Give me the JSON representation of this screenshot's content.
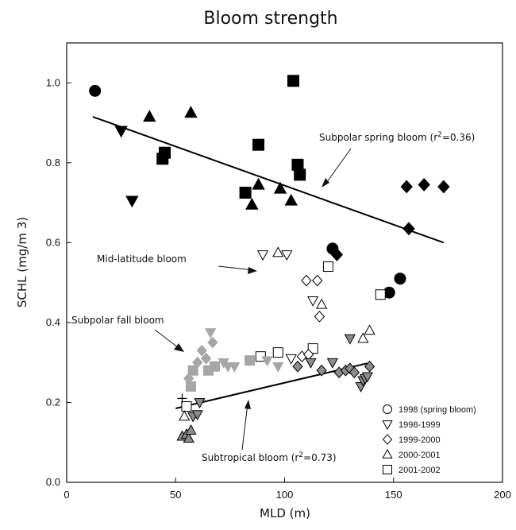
{
  "chart_data": {
    "type": "scatter",
    "title": "Bloom strength",
    "xlabel": "MLD (m)",
    "ylabel": "SCHL (mg/m 3)",
    "xlim": [
      0,
      200
    ],
    "ylim": [
      0,
      1.1
    ],
    "xticks": [
      "0",
      "50",
      "100",
      "150",
      "200"
    ],
    "yticks": [
      "0.0",
      "0.2",
      "0.4",
      "0.6",
      "0.8",
      "1.0"
    ],
    "legend_position": "bottom-right",
    "legend": [
      {
        "symbol": "circle",
        "label": "1998 (spring bloom)"
      },
      {
        "symbol": "triangle-down",
        "label": "1998-1999"
      },
      {
        "symbol": "diamond",
        "label": "1999-2000"
      },
      {
        "symbol": "triangle-up",
        "label": "2000-2001"
      },
      {
        "symbol": "square",
        "label": "2001-2002"
      }
    ],
    "colors": {
      "spring": "#000000",
      "midlat": "#ffffff",
      "fall": "#a6a6a6",
      "subtropical": "#8c8c8c",
      "edge": "#000000"
    },
    "annotations": [
      {
        "text": "Subpolar spring bloom (r",
        "sup": "2",
        "tail": "=0.36)"
      },
      {
        "text": "Mid-latitude bloom"
      },
      {
        "text": "Subpolar fall bloom"
      },
      {
        "text": "Subtropical bloom (r",
        "sup": "2",
        "tail": "=0.73)"
      }
    ],
    "regression_lines": [
      {
        "x": [
          12,
          173
        ],
        "y": [
          0.915,
          0.6
        ]
      },
      {
        "x": [
          50,
          138
        ],
        "y": [
          0.185,
          0.298
        ]
      }
    ],
    "series": [
      {
        "group": "spring",
        "points": [
          {
            "x": 13,
            "y": 0.98,
            "s": "circle"
          },
          {
            "x": 25,
            "y": 0.88,
            "s": "triangle-down"
          },
          {
            "x": 30,
            "y": 0.705,
            "s": "triangle-down"
          },
          {
            "x": 38,
            "y": 0.915,
            "s": "triangle-up"
          },
          {
            "x": 44,
            "y": 0.81,
            "s": "square"
          },
          {
            "x": 45,
            "y": 0.825,
            "s": "square"
          },
          {
            "x": 57,
            "y": 0.925,
            "s": "triangle-up"
          },
          {
            "x": 82,
            "y": 0.725,
            "s": "square"
          },
          {
            "x": 85,
            "y": 0.695,
            "s": "triangle-up"
          },
          {
            "x": 88,
            "y": 0.745,
            "s": "triangle-up"
          },
          {
            "x": 88,
            "y": 0.845,
            "s": "square"
          },
          {
            "x": 98,
            "y": 0.735,
            "s": "triangle-up"
          },
          {
            "x": 103,
            "y": 0.705,
            "s": "triangle-up"
          },
          {
            "x": 104,
            "y": 1.005,
            "s": "square"
          },
          {
            "x": 106,
            "y": 0.795,
            "s": "square"
          },
          {
            "x": 107,
            "y": 0.77,
            "s": "square"
          },
          {
            "x": 122,
            "y": 0.585,
            "s": "circle"
          },
          {
            "x": 124,
            "y": 0.57,
            "s": "diamond"
          },
          {
            "x": 153,
            "y": 0.51,
            "s": "circle"
          },
          {
            "x": 148,
            "y": 0.475,
            "s": "circle"
          },
          {
            "x": 156,
            "y": 0.74,
            "s": "diamond"
          },
          {
            "x": 164,
            "y": 0.745,
            "s": "diamond"
          },
          {
            "x": 173,
            "y": 0.74,
            "s": "diamond"
          },
          {
            "x": 157,
            "y": 0.635,
            "s": "diamond"
          }
        ]
      },
      {
        "group": "midlat",
        "points": [
          {
            "x": 90,
            "y": 0.57,
            "s": "triangle-down"
          },
          {
            "x": 97,
            "y": 0.575,
            "s": "triangle-up"
          },
          {
            "x": 101,
            "y": 0.57,
            "s": "triangle-down"
          },
          {
            "x": 110,
            "y": 0.505,
            "s": "diamond"
          },
          {
            "x": 115,
            "y": 0.505,
            "s": "diamond"
          },
          {
            "x": 120,
            "y": 0.54,
            "s": "square"
          },
          {
            "x": 113,
            "y": 0.455,
            "s": "triangle-down"
          },
          {
            "x": 117,
            "y": 0.445,
            "s": "triangle-up"
          },
          {
            "x": 116,
            "y": 0.415,
            "s": "diamond"
          },
          {
            "x": 144,
            "y": 0.47,
            "s": "square"
          },
          {
            "x": 139,
            "y": 0.38,
            "s": "triangle-up"
          },
          {
            "x": 136,
            "y": 0.36,
            "s": "triangle-up"
          },
          {
            "x": 89,
            "y": 0.315,
            "s": "square"
          },
          {
            "x": 97,
            "y": 0.325,
            "s": "square"
          },
          {
            "x": 103,
            "y": 0.31,
            "s": "triangle-down"
          },
          {
            "x": 108,
            "y": 0.315,
            "s": "diamond"
          },
          {
            "x": 113,
            "y": 0.335,
            "s": "square"
          },
          {
            "x": 111,
            "y": 0.32,
            "s": "diamond"
          },
          {
            "x": 55,
            "y": 0.19,
            "s": "square"
          },
          {
            "x": 54,
            "y": 0.165,
            "s": "triangle-up"
          }
        ]
      },
      {
        "group": "fall",
        "points": [
          {
            "x": 56,
            "y": 0.26,
            "s": "diamond"
          },
          {
            "x": 57,
            "y": 0.24,
            "s": "square"
          },
          {
            "x": 60,
            "y": 0.3,
            "s": "diamond"
          },
          {
            "x": 62,
            "y": 0.33,
            "s": "diamond"
          },
          {
            "x": 64,
            "y": 0.31,
            "s": "diamond"
          },
          {
            "x": 67,
            "y": 0.35,
            "s": "diamond"
          },
          {
            "x": 66,
            "y": 0.375,
            "s": "triangle-down"
          },
          {
            "x": 65,
            "y": 0.28,
            "s": "square"
          },
          {
            "x": 68,
            "y": 0.29,
            "s": "square"
          },
          {
            "x": 72,
            "y": 0.3,
            "s": "triangle-down"
          },
          {
            "x": 74,
            "y": 0.29,
            "s": "triangle-down"
          },
          {
            "x": 77,
            "y": 0.29,
            "s": "triangle-down"
          },
          {
            "x": 84,
            "y": 0.305,
            "s": "square"
          },
          {
            "x": 92,
            "y": 0.305,
            "s": "triangle-down"
          },
          {
            "x": 97,
            "y": 0.29,
            "s": "triangle-down"
          },
          {
            "x": 58,
            "y": 0.28,
            "s": "square"
          }
        ]
      },
      {
        "group": "subtropical",
        "points": [
          {
            "x": 53,
            "y": 0.115,
            "s": "triangle-up"
          },
          {
            "x": 55,
            "y": 0.12,
            "s": "triangle-up"
          },
          {
            "x": 56,
            "y": 0.11,
            "s": "triangle-up"
          },
          {
            "x": 57,
            "y": 0.13,
            "s": "triangle-up"
          },
          {
            "x": 58,
            "y": 0.165,
            "s": "triangle-down"
          },
          {
            "x": 60,
            "y": 0.17,
            "s": "triangle-down"
          },
          {
            "x": 61,
            "y": 0.2,
            "s": "triangle-down"
          },
          {
            "x": 106,
            "y": 0.29,
            "s": "diamond"
          },
          {
            "x": 112,
            "y": 0.3,
            "s": "triangle-down"
          },
          {
            "x": 117,
            "y": 0.28,
            "s": "diamond"
          },
          {
            "x": 122,
            "y": 0.3,
            "s": "triangle-down"
          },
          {
            "x": 125,
            "y": 0.275,
            "s": "diamond"
          },
          {
            "x": 128,
            "y": 0.28,
            "s": "diamond"
          },
          {
            "x": 130,
            "y": 0.285,
            "s": "diamond"
          },
          {
            "x": 132,
            "y": 0.275,
            "s": "diamond"
          },
          {
            "x": 130,
            "y": 0.36,
            "s": "triangle-down"
          },
          {
            "x": 135,
            "y": 0.24,
            "s": "triangle-down"
          },
          {
            "x": 136,
            "y": 0.255,
            "s": "triangle-down"
          },
          {
            "x": 137,
            "y": 0.26,
            "s": "triangle-down"
          },
          {
            "x": 139,
            "y": 0.29,
            "s": "diamond"
          },
          {
            "x": 138,
            "y": 0.265,
            "s": "triangle-down"
          }
        ]
      },
      {
        "group": "plus",
        "points": [
          {
            "x": 53,
            "y": 0.21,
            "s": "plus"
          }
        ]
      }
    ]
  }
}
